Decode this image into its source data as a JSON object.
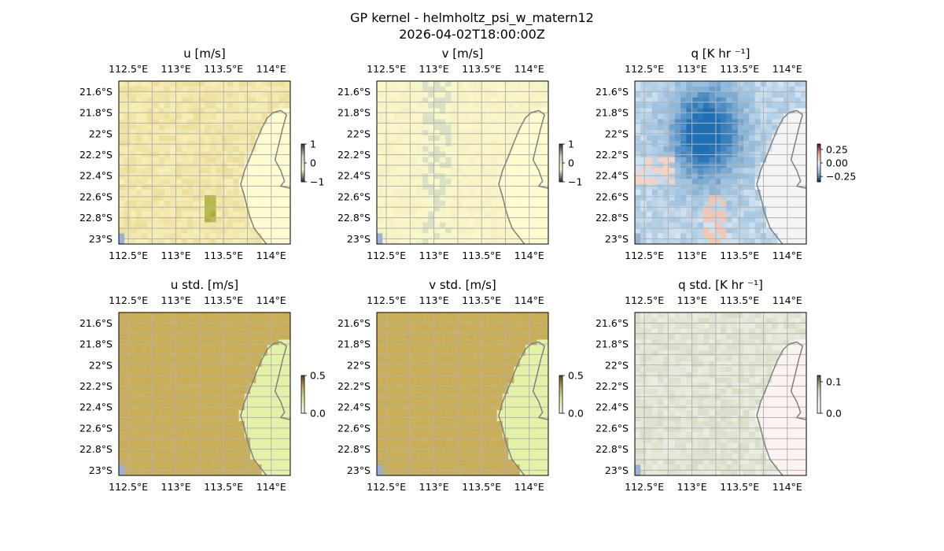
{
  "figure": {
    "title": "GP kernel - helmholtz_psi_w_matern12",
    "subtitle": "2026-04-02T18:00:00Z"
  },
  "chart_data": [
    {
      "type": "heatmap",
      "title": "u [m/s]",
      "lon_ticks": [
        "112.5°E",
        "113°E",
        "113.5°E",
        "114°E"
      ],
      "lat_ticks": [
        "21.6°S",
        "21.8°S",
        "22°S",
        "22.2°S",
        "22.4°S",
        "22.6°S",
        "22.8°S",
        "23°S"
      ],
      "colorbar": {
        "ticks": [
          "1",
          "0",
          "−1"
        ],
        "range": [
          -1,
          1
        ]
      },
      "field_colors": {
        "sea": "#e8d68c",
        "land": "#fffdcf",
        "accent": "#99a620"
      }
    },
    {
      "type": "heatmap",
      "title": "v [m/s]",
      "lon_ticks": [
        "112.5°E",
        "113°E",
        "113.5°E",
        "114°E"
      ],
      "lat_ticks": [
        "21.6°S",
        "21.8°S",
        "22°S",
        "22.2°S",
        "22.4°S",
        "22.6°S",
        "22.8°S",
        "23°S"
      ],
      "colorbar": {
        "ticks": [
          "1",
          "0",
          "−1"
        ],
        "range": [
          -1,
          1
        ]
      },
      "field_colors": {
        "sea": "#f3eec0",
        "land": "#fffdcf",
        "accent": "#c9d8c8"
      }
    },
    {
      "type": "heatmap",
      "title": "q [K hr ⁻¹]",
      "lon_ticks": [
        "112.5°E",
        "113°E",
        "113.5°E",
        "114°E"
      ],
      "lat_ticks": [
        "21.6°S",
        "21.8°S",
        "22°S",
        "22.2°S",
        "22.4°S",
        "22.6°S",
        "22.8°S",
        "23°S"
      ],
      "colorbar": {
        "ticks": [
          "0.25",
          "0.00",
          "−0.25"
        ],
        "range": [
          -0.35,
          0.35
        ]
      },
      "field_colors": {
        "sea": "#d5e6f2",
        "land": "#f4f4f4",
        "accent": "#1f6fb4"
      }
    },
    {
      "type": "heatmap",
      "title": "u std. [m/s]",
      "lon_ticks": [
        "112.5°E",
        "113°E",
        "113.5°E",
        "114°E"
      ],
      "lat_ticks": [
        "21.6°S",
        "21.8°S",
        "22°S",
        "22.2°S",
        "22.4°S",
        "22.6°S",
        "22.8°S",
        "23°S"
      ],
      "colorbar": {
        "ticks": [
          "0.5",
          "0.0"
        ],
        "range": [
          0,
          0.5
        ]
      },
      "field_colors": {
        "sea": "#c9ad55",
        "land": "#e4f2a8",
        "accent": "#d0b765"
      }
    },
    {
      "type": "heatmap",
      "title": "v std. [m/s]",
      "lon_ticks": [
        "112.5°E",
        "113°E",
        "113.5°E",
        "114°E"
      ],
      "lat_ticks": [
        "21.6°S",
        "21.8°S",
        "22°S",
        "22.2°S",
        "22.4°S",
        "22.6°S",
        "22.8°S",
        "23°S"
      ],
      "colorbar": {
        "ticks": [
          "0.5",
          "0.0"
        ],
        "range": [
          0,
          0.5
        ]
      },
      "field_colors": {
        "sea": "#c9ad55",
        "land": "#e4f2a8",
        "accent": "#d0b765"
      }
    },
    {
      "type": "heatmap",
      "title": "q std. [K hr ⁻¹]",
      "lon_ticks": [
        "112.5°E",
        "113°E",
        "113.5°E",
        "114°E"
      ],
      "lat_ticks": [
        "21.6°S",
        "21.8°S",
        "22°S",
        "22.2°S",
        "22.4°S",
        "22.6°S",
        "22.8°S",
        "23°S"
      ],
      "colorbar": {
        "ticks": [
          "0.1",
          "0.0"
        ],
        "range": [
          0,
          0.12
        ]
      },
      "field_colors": {
        "sea": "#ecede3",
        "land": "#fcf3f1",
        "accent": "#c6d3b3"
      }
    }
  ],
  "style": {
    "ocean_edge": "#9bb0d6",
    "coastline": "#808080",
    "gridline": "#b3b3b3"
  }
}
